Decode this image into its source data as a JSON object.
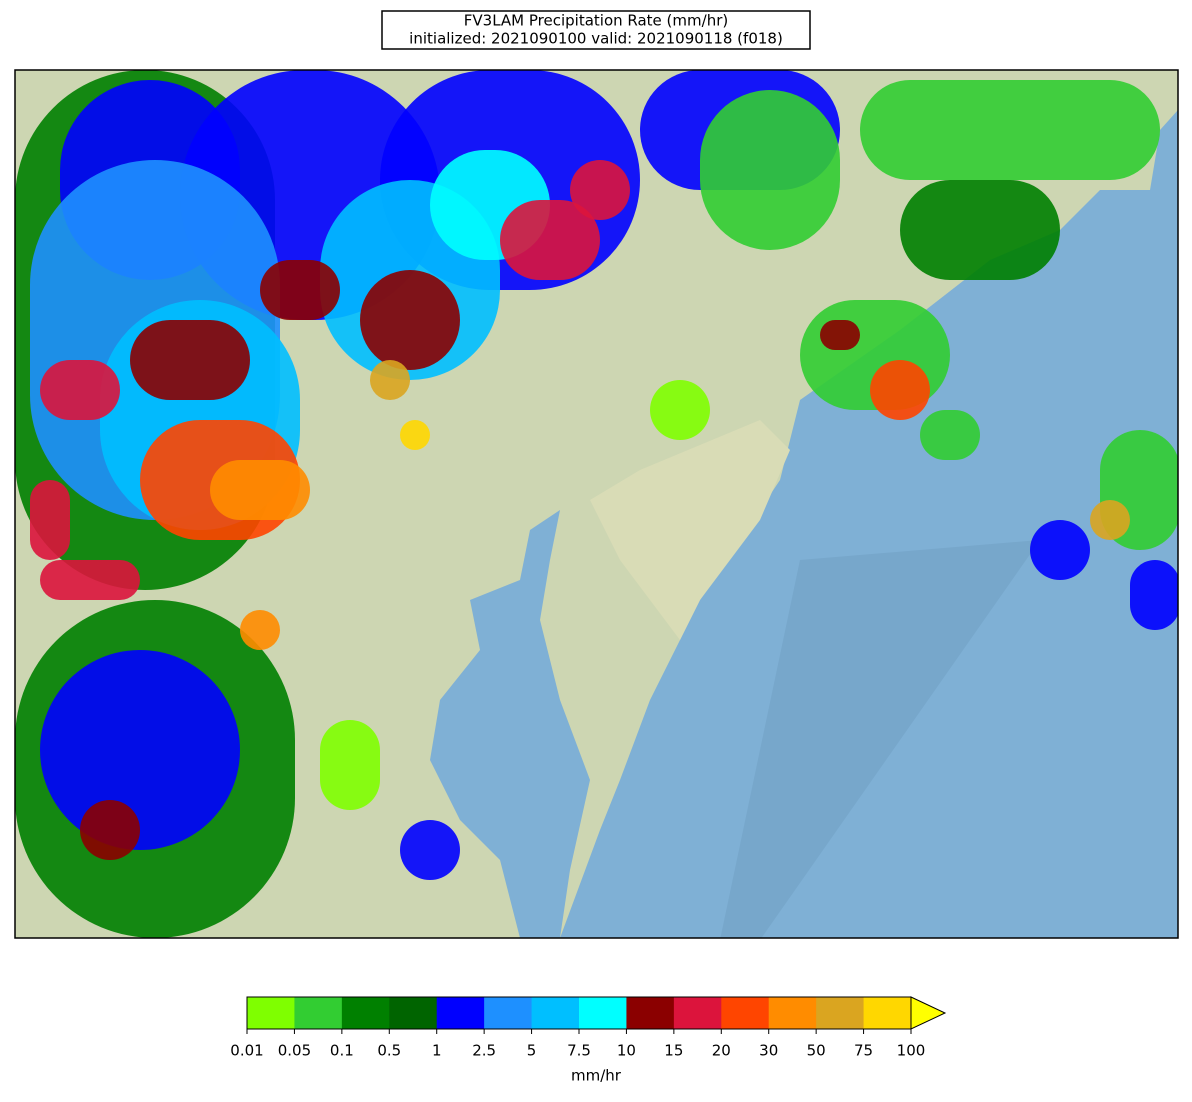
{
  "title": {
    "line1": "FV3LAM Precipitation Rate (mm/hr)",
    "line2": "initialized: 2021090100 valid: 2021090118 (f018)"
  },
  "colorbar": {
    "label": "mm/hr",
    "ticks": [
      0.01,
      0.05,
      0.1,
      0.5,
      1,
      2.5,
      5,
      7.5,
      10,
      15,
      20,
      30,
      50,
      75,
      100
    ],
    "colors": [
      "#7fff00",
      "#32cd32",
      "#008000",
      "#006400",
      "#0000ff",
      "#1e90ff",
      "#00bfff",
      "#00ffff",
      "#8b0000",
      "#dc143c",
      "#ff4500",
      "#ff8c00",
      "#daa520",
      "#ffd700"
    ],
    "extend_color": "#ffff00"
  }
}
